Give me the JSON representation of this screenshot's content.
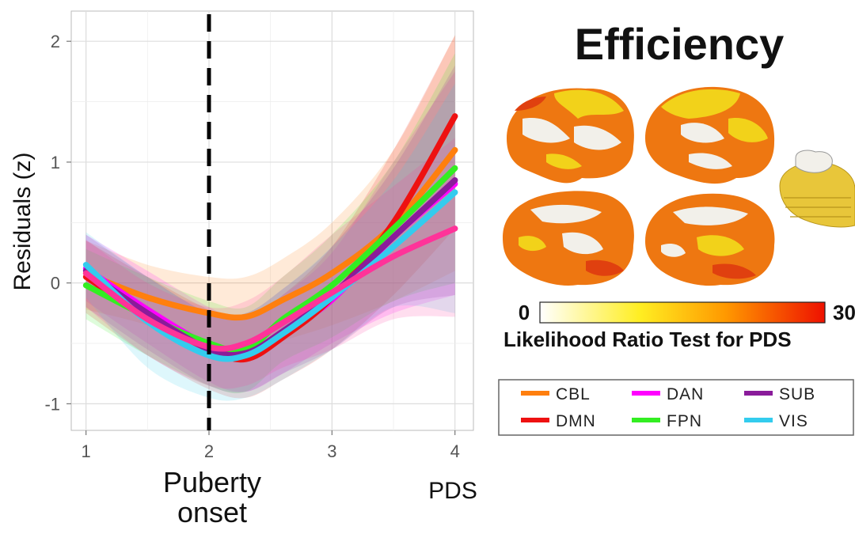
{
  "chart_data": {
    "type": "line",
    "xlabel": "PDS",
    "ylabel": "Residuals (z)",
    "xlim": [
      0.88,
      4.15
    ],
    "ylim": [
      -1.22,
      2.25
    ],
    "xticks": [
      "1",
      "2",
      "3",
      "4"
    ],
    "yticks": [
      "-1",
      "0",
      "1",
      "2"
    ],
    "grid": true,
    "x": [
      1,
      1.5,
      2,
      2.3,
      2.6,
      3,
      3.5,
      4
    ],
    "series": [
      {
        "name": "CBL",
        "color": "#ff7f0e",
        "values": [
          0.08,
          -0.12,
          -0.25,
          -0.28,
          -0.14,
          0.08,
          0.48,
          1.1
        ],
        "ci_lower": [
          -0.22,
          -0.35,
          -0.55,
          -0.6,
          -0.48,
          -0.35,
          -0.15,
          0.1
        ],
        "ci_upper": [
          0.35,
          0.15,
          0.05,
          0.05,
          0.2,
          0.5,
          1.1,
          2.05
        ]
      },
      {
        "name": "DAN",
        "color": "#ff00ff",
        "values": [
          0.12,
          -0.22,
          -0.52,
          -0.6,
          -0.42,
          -0.14,
          0.38,
          0.82
        ],
        "ci_lower": [
          -0.15,
          -0.5,
          -0.82,
          -0.9,
          -0.75,
          -0.5,
          -0.25,
          -0.1
        ],
        "ci_upper": [
          0.4,
          0.1,
          -0.2,
          -0.3,
          -0.1,
          0.25,
          1.0,
          1.75
        ]
      },
      {
        "name": "DMN",
        "color": "#ee1111",
        "values": [
          0.05,
          -0.28,
          -0.55,
          -0.63,
          -0.45,
          -0.12,
          0.5,
          1.38
        ],
        "ci_lower": [
          -0.25,
          -0.6,
          -0.88,
          -0.95,
          -0.8,
          -0.55,
          -0.1,
          0.45
        ],
        "ci_upper": [
          0.35,
          0.05,
          -0.22,
          -0.3,
          -0.1,
          0.3,
          1.1,
          2.05
        ]
      },
      {
        "name": "FPN",
        "color": "#33ee22",
        "values": [
          -0.02,
          -0.28,
          -0.5,
          -0.55,
          -0.3,
          -0.02,
          0.45,
          0.95
        ],
        "ci_lower": [
          -0.3,
          -0.6,
          -0.85,
          -0.9,
          -0.65,
          -0.45,
          -0.15,
          0.0
        ],
        "ci_upper": [
          0.28,
          0.05,
          -0.15,
          -0.2,
          0.05,
          0.4,
          1.0,
          1.9
        ]
      },
      {
        "name": "SUB",
        "color": "#8a1c9a",
        "values": [
          0.1,
          -0.25,
          -0.55,
          -0.58,
          -0.4,
          -0.1,
          0.38,
          0.85
        ],
        "ci_lower": [
          -0.2,
          -0.55,
          -0.85,
          -0.9,
          -0.75,
          -0.55,
          -0.2,
          -0.1
        ],
        "ci_upper": [
          0.4,
          0.05,
          -0.25,
          -0.25,
          -0.05,
          0.3,
          0.95,
          1.8
        ]
      },
      {
        "name": "VIS",
        "color": "#33ccee",
        "values": [
          0.15,
          -0.32,
          -0.6,
          -0.6,
          -0.42,
          -0.12,
          0.3,
          0.75
        ],
        "ci_lower": [
          -0.12,
          -0.7,
          -0.95,
          -0.95,
          -0.8,
          -0.55,
          -0.2,
          -0.25
        ],
        "ci_upper": [
          0.42,
          0.05,
          -0.25,
          -0.25,
          -0.05,
          0.3,
          0.85,
          1.65
        ]
      },
      {
        "name": "",
        "color": "#ff3399",
        "values": [
          0.08,
          -0.3,
          -0.53,
          -0.5,
          -0.33,
          -0.08,
          0.22,
          0.45
        ],
        "ci_lower": [
          -0.2,
          -0.6,
          -0.85,
          -0.85,
          -0.7,
          -0.55,
          -0.3,
          -0.28
        ],
        "ci_upper": [
          0.36,
          0.0,
          -0.2,
          -0.15,
          0.05,
          0.4,
          0.8,
          1.2
        ]
      }
    ],
    "vline_x": 2,
    "annotation": {
      "line1": "Puberty",
      "line2": "onset"
    }
  },
  "brain_panel": {
    "title": "Efficiency",
    "colorbar": {
      "min_label": "0",
      "max_label": "30",
      "label": "Likelihood Ratio Test for PDS",
      "colors": [
        "#ffffff",
        "#ffee22",
        "#ff9900",
        "#ee1100"
      ]
    },
    "colors": {
      "white": "#f2f0ea",
      "yellow": "#f2d21a",
      "orange": "#ee7711",
      "red": "#e0400f",
      "cerebellum": "#e8c63a"
    }
  },
  "legend": {
    "items": [
      {
        "name": "CBL",
        "color": "#ff7f0e"
      },
      {
        "name": "DAN",
        "color": "#ff00ff"
      },
      {
        "name": "SUB",
        "color": "#8a1c9a"
      },
      {
        "name": "DMN",
        "color": "#ee1111"
      },
      {
        "name": "FPN",
        "color": "#33ee22"
      },
      {
        "name": "VIS",
        "color": "#33ccee"
      }
    ]
  }
}
